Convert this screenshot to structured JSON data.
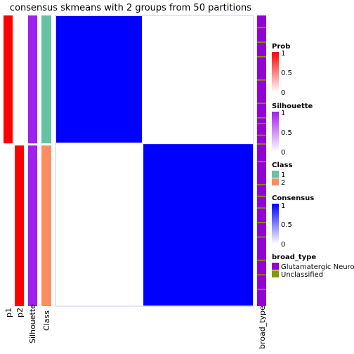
{
  "chart_data": {
    "type": "heatmap",
    "title": "consensus skmeans with 2 groups from 50 partitions",
    "n_samples": 100,
    "groups": [
      {
        "class": "1",
        "count": 44
      },
      {
        "class": "2",
        "count": 56
      }
    ],
    "annotation_tracks": [
      "p1",
      "p2",
      "Silhouette",
      "Class"
    ],
    "right_annotation_label": "broad_type",
    "unclassified_sample_indices": [
      4,
      9,
      14,
      22,
      30,
      35,
      37,
      41,
      44,
      50,
      58,
      62,
      66,
      71,
      76,
      84,
      89,
      94
    ],
    "legends": [
      {
        "title": "Prob",
        "kind": "gradient",
        "ticks": [
          "1",
          "0.5",
          "0"
        ],
        "colors": [
          "#ff0000",
          "#ffffff"
        ]
      },
      {
        "title": "Silhouette",
        "kind": "gradient",
        "ticks": [
          "1",
          "0.5",
          "0"
        ],
        "colors": [
          "#a020f0",
          "#ffffff"
        ]
      },
      {
        "title": "Class",
        "kind": "discrete",
        "items": [
          {
            "label": "1",
            "color": "#66c2a5"
          },
          {
            "label": "2",
            "color": "#fc8d62"
          }
        ]
      },
      {
        "title": "Consensus",
        "kind": "gradient",
        "ticks": [
          "1",
          "0.5",
          "0"
        ],
        "colors": [
          "#0000ff",
          "#ffffff"
        ]
      },
      {
        "title": "broad_type",
        "kind": "discrete",
        "items": [
          {
            "label": "Glutamatergic Neuron",
            "color": "#9400d3"
          },
          {
            "label": "Unclassified",
            "color": "#7f9c00"
          }
        ]
      }
    ],
    "colors": {
      "prob_high": "#ff0000",
      "silhouette": "#a020f0",
      "consensus": "#0000ff",
      "glutamatergic": "#9400d3",
      "unclassified": "#7f9c00"
    }
  }
}
